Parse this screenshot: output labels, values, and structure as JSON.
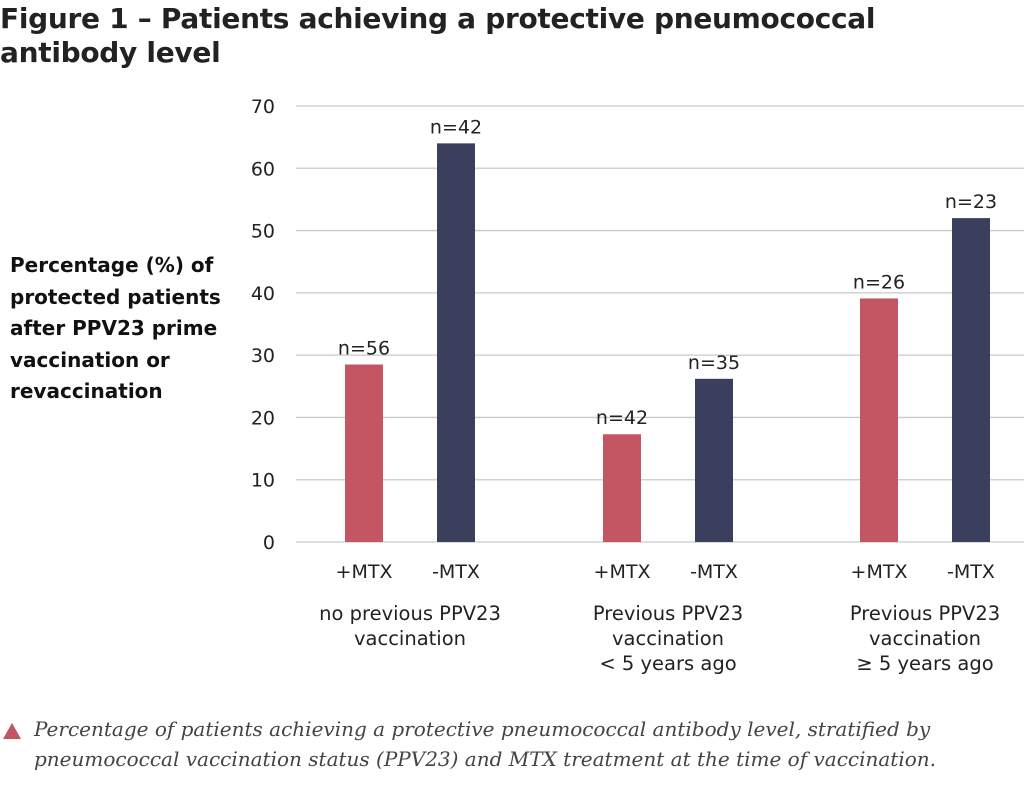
{
  "title": "Figure 1 – Patients achieving a protective pneumococcal antibody level",
  "caption": "Percentage of patients achieving a protective pneumococcal antibody level, stratified by pneumococcal vaccination status (PPV23) and MTX treatment at the time of vaccination.",
  "colors": {
    "plus_mtx": "#c45664",
    "minus_mtx": "#3a3f5e",
    "grid": "#c9c9c9",
    "accent": "#c0545f"
  },
  "chart_data": {
    "type": "bar",
    "ylabel": "Percentage (%) of protected patients after PPV23 prime vaccination or revaccination",
    "ylim": [
      0,
      70
    ],
    "yticks": [
      "0",
      "10",
      "20",
      "30",
      "40",
      "50",
      "60",
      "70"
    ],
    "grid": true,
    "groups": [
      {
        "label_lines": [
          "no previous PPV23",
          "vaccination"
        ],
        "bars": [
          {
            "category": "+MTX",
            "value": 28.5,
            "label": "n=56",
            "series": "plus_mtx"
          },
          {
            "category": "-MTX",
            "value": 64,
            "label": "n=42",
            "series": "minus_mtx"
          }
        ]
      },
      {
        "label_lines": [
          "Previous PPV23",
          "vaccination",
          "< 5 years ago"
        ],
        "bars": [
          {
            "category": "+MTX",
            "value": 17.3,
            "label": "n=42",
            "series": "plus_mtx"
          },
          {
            "category": "-MTX",
            "value": 26.2,
            "label": "n=35",
            "series": "minus_mtx"
          }
        ]
      },
      {
        "label_lines": [
          "Previous PPV23",
          "vaccination",
          "≥ 5 years ago"
        ],
        "bars": [
          {
            "category": "+MTX",
            "value": 39.1,
            "label": "n=26",
            "series": "plus_mtx"
          },
          {
            "category": "-MTX",
            "value": 52,
            "label": "n=23",
            "series": "minus_mtx"
          }
        ]
      }
    ]
  }
}
